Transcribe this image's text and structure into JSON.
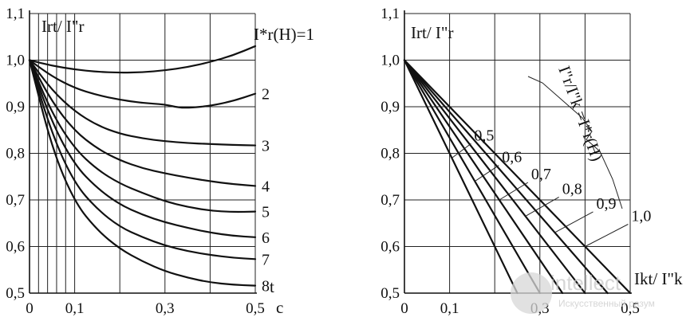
{
  "chart_data": [
    {
      "type": "line",
      "ylabel": "Irt/ I\"r",
      "xlabel": "t",
      "x_unit": "c",
      "xlim": [
        0,
        0.5
      ],
      "ylim": [
        0.5,
        1.1
      ],
      "x_ticks": [
        "0",
        "0,1",
        "0,3",
        "0,5"
      ],
      "y_ticks": [
        "0,5",
        "0,6",
        "0,7",
        "0,8",
        "0,9",
        "1,0",
        "1,1"
      ],
      "param_label": "I*r(H)=1",
      "series": [
        {
          "name": "1",
          "x": [
            0,
            0.05,
            0.1,
            0.15,
            0.2,
            0.25,
            0.3,
            0.35,
            0.4,
            0.45,
            0.5
          ],
          "values": [
            1.0,
            0.988,
            0.98,
            0.975,
            0.973,
            0.974,
            0.978,
            0.985,
            0.996,
            1.01,
            1.03
          ]
        },
        {
          "name": "2",
          "x": [
            0,
            0.05,
            0.1,
            0.15,
            0.2,
            0.25,
            0.3,
            0.33,
            0.36,
            0.4,
            0.45,
            0.5
          ],
          "values": [
            1.0,
            0.965,
            0.94,
            0.925,
            0.915,
            0.908,
            0.905,
            0.898,
            0.898,
            0.902,
            0.912,
            0.928
          ]
        },
        {
          "name": "3",
          "x": [
            0,
            0.05,
            0.1,
            0.15,
            0.2,
            0.25,
            0.3,
            0.35,
            0.4,
            0.45,
            0.5
          ],
          "values": [
            1.0,
            0.935,
            0.89,
            0.86,
            0.842,
            0.832,
            0.826,
            0.822,
            0.82,
            0.818,
            0.817
          ]
        },
        {
          "name": "4",
          "x": [
            0,
            0.05,
            0.1,
            0.15,
            0.2,
            0.25,
            0.3,
            0.35,
            0.4,
            0.45,
            0.5
          ],
          "values": [
            1.0,
            0.91,
            0.848,
            0.81,
            0.785,
            0.768,
            0.757,
            0.748,
            0.74,
            0.734,
            0.73
          ]
        },
        {
          "name": "5",
          "x": [
            0,
            0.05,
            0.1,
            0.15,
            0.2,
            0.25,
            0.3,
            0.35,
            0.4,
            0.45,
            0.5
          ],
          "values": [
            1.0,
            0.885,
            0.81,
            0.765,
            0.735,
            0.715,
            0.697,
            0.685,
            0.677,
            0.674,
            0.675
          ]
        },
        {
          "name": "6",
          "x": [
            0,
            0.05,
            0.1,
            0.15,
            0.2,
            0.25,
            0.3,
            0.35,
            0.4,
            0.45,
            0.5
          ],
          "values": [
            1.0,
            0.865,
            0.775,
            0.725,
            0.69,
            0.668,
            0.652,
            0.64,
            0.63,
            0.623,
            0.62
          ]
        },
        {
          "name": "7",
          "x": [
            0,
            0.05,
            0.1,
            0.15,
            0.2,
            0.25,
            0.3,
            0.35,
            0.4,
            0.45,
            0.5
          ],
          "values": [
            1.0,
            0.84,
            0.735,
            0.68,
            0.642,
            0.62,
            0.602,
            0.59,
            0.582,
            0.576,
            0.573
          ]
        },
        {
          "name": "8",
          "x": [
            0,
            0.05,
            0.1,
            0.15,
            0.2,
            0.25,
            0.3,
            0.35,
            0.4,
            0.45,
            0.5
          ],
          "values": [
            1.0,
            0.81,
            0.695,
            0.635,
            0.595,
            0.568,
            0.547,
            0.533,
            0.523,
            0.518,
            0.516
          ]
        }
      ]
    },
    {
      "type": "line",
      "ylabel": "Irt/ I\"r",
      "xlabel": "Ikt/ I\"k",
      "xlim": [
        0,
        0.5
      ],
      "ylim": [
        0.5,
        1.1
      ],
      "x_ticks": [
        "0",
        "0,1",
        "0,3",
        "0,5"
      ],
      "y_ticks": [
        "0,5",
        "0,6",
        "0,7",
        "0,8",
        "0,9",
        "1,0",
        "1,1"
      ],
      "param_label": "I\"r/I\"k =I*r(H)",
      "series": [
        {
          "name": "0,5",
          "x": [
            0,
            0.25
          ],
          "values": [
            1.0,
            0.5
          ]
        },
        {
          "name": "0,6",
          "x": [
            0,
            0.3
          ],
          "values": [
            1.0,
            0.5
          ]
        },
        {
          "name": "0,7",
          "x": [
            0,
            0.35
          ],
          "values": [
            1.0,
            0.5
          ]
        },
        {
          "name": "0,8",
          "x": [
            0,
            0.4
          ],
          "values": [
            1.0,
            0.5
          ]
        },
        {
          "name": "0,9",
          "x": [
            0,
            0.45
          ],
          "values": [
            1.0,
            0.5
          ]
        },
        {
          "name": "1,0",
          "x": [
            0,
            0.5
          ],
          "values": [
            1.0,
            0.5
          ]
        }
      ]
    }
  ],
  "watermark": {
    "brand": "intellect",
    "tagline": "Искусственный разум"
  }
}
